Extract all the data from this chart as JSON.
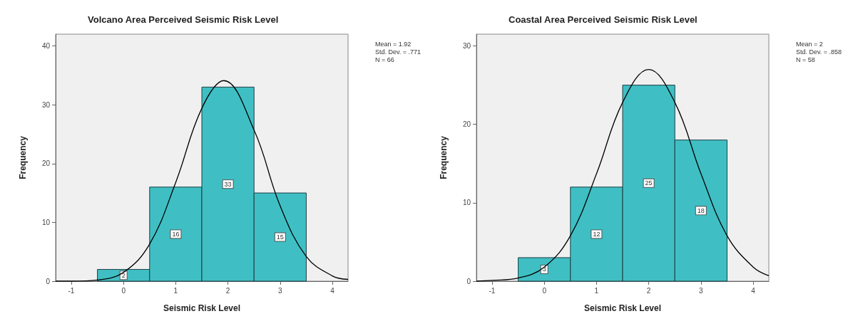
{
  "chart_data": [
    {
      "type": "histogram",
      "title": "Volcano Area Perceived Seismic Risk Level",
      "xlabel": "Seismic Risk Level",
      "ylabel": "Frequency",
      "bins": [
        -0.5,
        0.5,
        1.5,
        2.5,
        3.5
      ],
      "series": [
        {
          "color": "#3fbfc4",
          "values": [
            2,
            16,
            33,
            15
          ],
          "value_labels": [
            "2",
            "16",
            "33",
            "15"
          ]
        },
        {
          "type": "line",
          "color": "#000000",
          "x": [
            -1.3,
            -1,
            -0.5,
            0,
            0.5,
            1,
            1.5,
            1.92,
            2.5,
            3,
            3.5,
            4,
            4.3
          ],
          "values": [
            0,
            0,
            0.2,
            1.5,
            6.3,
            16.8,
            29.4,
            34.1,
            25.7,
            12.8,
            4.2,
            0.9,
            0.3
          ]
        }
      ],
      "xlim": [
        -1.3,
        4.3
      ],
      "xticks": [
        -1,
        0,
        1,
        2,
        3,
        4
      ],
      "ylim": [
        0,
        42
      ],
      "yticks": [
        0,
        10,
        20,
        30,
        40
      ],
      "grid": false,
      "marker": "none",
      "line_style": "solid",
      "annotations": [
        "Mean = 1.92",
        "Std. Dev. = .771",
        "N = 66"
      ]
    },
    {
      "type": "histogram",
      "title": "Coastal Area Perceived Seismic Risk Level",
      "xlabel": "Seismic Risk Level",
      "ylabel": "Frequency",
      "bins": [
        -0.5,
        0.5,
        1.5,
        2.5,
        3.5
      ],
      "series": [
        {
          "color": "#3fbfc4",
          "values": [
            3,
            12,
            25,
            18
          ],
          "value_labels": [
            "3",
            "12",
            "25",
            "18"
          ]
        },
        {
          "type": "line",
          "color": "#000000",
          "x": [
            -1.3,
            -1,
            -0.5,
            0,
            0.5,
            1,
            1.5,
            2,
            2.5,
            3,
            3.5,
            4,
            4.3
          ],
          "values": [
            0,
            0.1,
            0.4,
            1.8,
            5.8,
            13.7,
            22.8,
            27,
            22.8,
            13.7,
            5.8,
            1.8,
            0.7
          ]
        }
      ],
      "xlim": [
        -1.3,
        4.3
      ],
      "xticks": [
        -1,
        0,
        1,
        2,
        3,
        4
      ],
      "ylim": [
        0,
        31.5
      ],
      "yticks": [
        0,
        10,
        20,
        30
      ],
      "grid": false,
      "marker": "none",
      "line_style": "solid",
      "annotations": [
        "Mean = 2",
        "Std. Dev. = .858",
        "N = 58"
      ]
    }
  ]
}
